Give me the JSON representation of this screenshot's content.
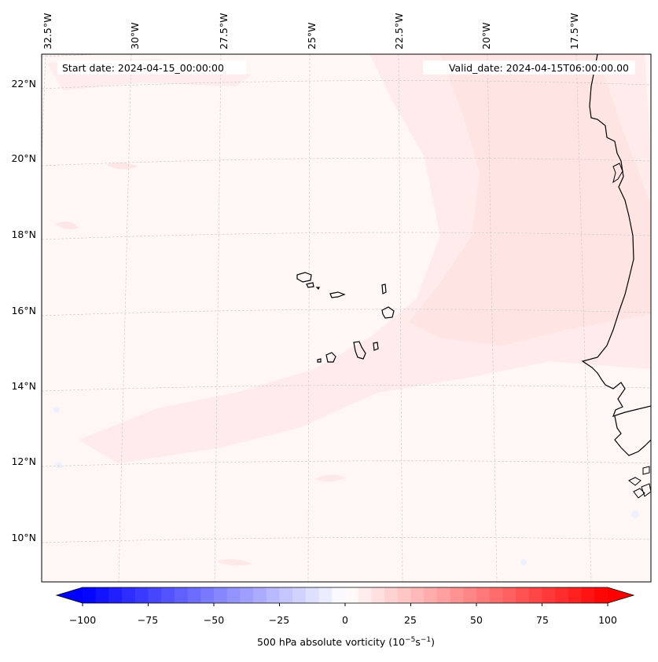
{
  "map": {
    "start_label": "Start date: 2024-04-15_00:00:00",
    "valid_label": "Valid_date: 2024-04-15T06:00:00.00",
    "lon_labels": [
      "32.5°W",
      "30°W",
      "27.5°W",
      "25°W",
      "22.5°W",
      "20°W",
      "17.5°W"
    ],
    "lat_labels": [
      "22°N",
      "20°N",
      "18°N",
      "16°N",
      "14°N",
      "12°N",
      "10°N"
    ],
    "colorbar": {
      "label": "500 hPa absolute vorticity (10",
      "label_sup_1": "−5",
      "label_mid": "s",
      "label_sup_2": "−1",
      "label_end": ")",
      "ticks": [
        "−100",
        "−75",
        "−50",
        "−25",
        "0",
        "25",
        "50",
        "75",
        "100"
      ],
      "min": -100,
      "max": 100,
      "step": 5,
      "neg_color": "#0000ff",
      "pos_color": "#ff0000"
    },
    "colors": {
      "background": "#fff6f6",
      "band": "#ffe6e6",
      "coast": "#000000",
      "grid": "#c8c8c8"
    }
  }
}
